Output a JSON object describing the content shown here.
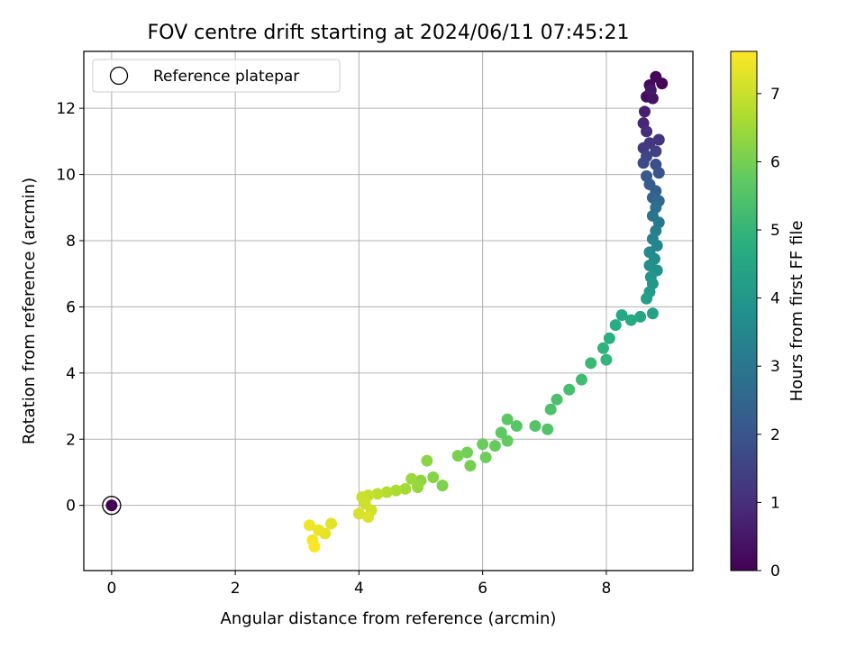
{
  "chart_data": {
    "type": "scatter",
    "title": "FOV centre drift starting at 2024/06/11 07:45:21",
    "xlabel": "Angular distance from reference (arcmin)",
    "ylabel": "Rotation from reference (arcmin)",
    "xlim": [
      -0.45,
      9.4
    ],
    "ylim": [
      -1.97,
      13.72
    ],
    "xticks": [
      "0",
      "2",
      "4",
      "6",
      "8"
    ],
    "yticks": [
      "0",
      "2",
      "4",
      "6",
      "8",
      "10",
      "12"
    ],
    "grid": true,
    "legend": {
      "position": "top-left",
      "entries": [
        "Reference platepar"
      ]
    },
    "colorbar": {
      "label": "Hours from first FF file",
      "range": [
        0,
        7.62
      ],
      "ticks": [
        "0",
        "1",
        "2",
        "3",
        "4",
        "5",
        "6",
        "7"
      ],
      "colormap": "viridis"
    },
    "reference_point": {
      "x": 0,
      "y": 0,
      "hours": 0
    },
    "path": [
      [
        8.9,
        12.75,
        0.05
      ],
      [
        8.8,
        12.95,
        0.12
      ],
      [
        8.7,
        12.7,
        0.2
      ],
      [
        8.65,
        12.35,
        0.3
      ],
      [
        8.75,
        12.3,
        0.4
      ],
      [
        8.72,
        12.55,
        0.48
      ],
      [
        8.62,
        11.9,
        0.65
      ],
      [
        8.6,
        11.55,
        0.8
      ],
      [
        8.65,
        11.3,
        0.95
      ],
      [
        8.85,
        11.05,
        1.1
      ],
      [
        8.7,
        10.95,
        1.2
      ],
      [
        8.6,
        10.8,
        1.3
      ],
      [
        8.8,
        10.7,
        1.45
      ],
      [
        8.65,
        10.55,
        1.55
      ],
      [
        8.6,
        10.35,
        1.7
      ],
      [
        8.8,
        10.3,
        1.8
      ],
      [
        8.85,
        10.05,
        1.95
      ],
      [
        8.65,
        9.95,
        2.1
      ],
      [
        8.7,
        9.7,
        2.2
      ],
      [
        8.8,
        9.5,
        2.3
      ],
      [
        8.75,
        9.3,
        2.45
      ],
      [
        8.85,
        9.2,
        2.6
      ],
      [
        8.8,
        9.0,
        2.75
      ],
      [
        8.75,
        8.75,
        2.9
      ],
      [
        8.85,
        8.55,
        3.05
      ],
      [
        8.8,
        8.3,
        3.2
      ],
      [
        8.75,
        8.05,
        3.35
      ],
      [
        8.82,
        7.85,
        3.45
      ],
      [
        8.7,
        7.65,
        3.55
      ],
      [
        8.78,
        7.45,
        3.65
      ],
      [
        8.7,
        7.25,
        3.75
      ],
      [
        8.82,
        7.1,
        3.85
      ],
      [
        8.72,
        6.9,
        3.95
      ],
      [
        8.75,
        6.7,
        4.05
      ],
      [
        8.7,
        6.45,
        4.15
      ],
      [
        8.65,
        6.25,
        4.25
      ],
      [
        8.75,
        5.8,
        4.35
      ],
      [
        8.55,
        5.7,
        4.45
      ],
      [
        8.25,
        5.75,
        4.55
      ],
      [
        8.4,
        5.6,
        4.6
      ],
      [
        8.15,
        5.45,
        4.7
      ],
      [
        8.05,
        5.05,
        4.8
      ],
      [
        7.95,
        4.75,
        4.9
      ],
      [
        8.0,
        4.4,
        5.0
      ],
      [
        7.75,
        4.3,
        5.1
      ],
      [
        7.6,
        3.8,
        5.2
      ],
      [
        7.4,
        3.5,
        5.3
      ],
      [
        7.2,
        3.2,
        5.4
      ],
      [
        7.1,
        2.9,
        5.45
      ],
      [
        7.05,
        2.3,
        5.5
      ],
      [
        6.85,
        2.4,
        5.55
      ],
      [
        6.55,
        2.4,
        5.6
      ],
      [
        6.4,
        2.6,
        5.65
      ],
      [
        6.3,
        2.2,
        5.7
      ],
      [
        6.4,
        1.95,
        5.75
      ],
      [
        6.2,
        1.8,
        5.8
      ],
      [
        6.0,
        1.85,
        5.85
      ],
      [
        6.05,
        1.45,
        5.9
      ],
      [
        5.75,
        1.6,
        5.95
      ],
      [
        5.8,
        1.2,
        6.0
      ],
      [
        5.6,
        1.5,
        6.05
      ],
      [
        5.35,
        0.6,
        6.1
      ],
      [
        5.2,
        0.85,
        6.2
      ],
      [
        5.1,
        1.35,
        6.25
      ],
      [
        5.0,
        0.75,
        6.3
      ],
      [
        4.95,
        0.55,
        6.4
      ],
      [
        4.85,
        0.8,
        6.45
      ],
      [
        4.75,
        0.5,
        6.55
      ],
      [
        4.6,
        0.45,
        6.65
      ],
      [
        4.45,
        0.4,
        6.75
      ],
      [
        4.3,
        0.35,
        6.85
      ],
      [
        4.15,
        0.3,
        6.95
      ],
      [
        4.05,
        0.25,
        7.0
      ],
      [
        4.1,
        0.05,
        7.05
      ],
      [
        4.2,
        -0.15,
        7.1
      ],
      [
        4.0,
        -0.25,
        7.15
      ],
      [
        4.15,
        -0.35,
        7.2
      ],
      [
        3.55,
        -0.55,
        7.3
      ],
      [
        3.45,
        -0.85,
        7.35
      ],
      [
        3.35,
        -0.75,
        7.4
      ],
      [
        3.2,
        -0.6,
        7.45
      ],
      [
        3.25,
        -1.05,
        7.5
      ],
      [
        3.28,
        -1.25,
        7.58
      ]
    ]
  }
}
